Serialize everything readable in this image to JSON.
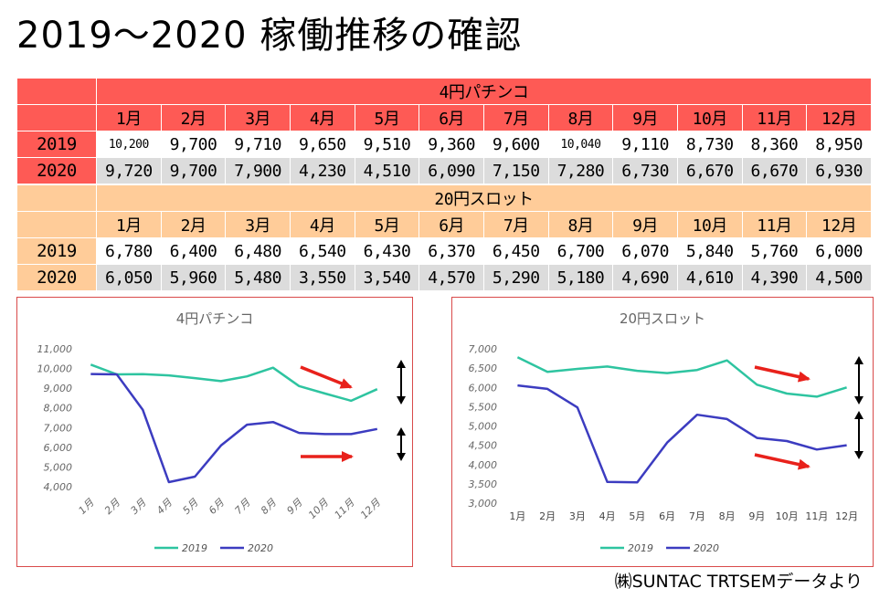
{
  "title": "2019～2020  稼働推移の確認",
  "footer": "㈱SUNTAC  TRTSEMデータより",
  "months": [
    "1月",
    "2月",
    "3月",
    "4月",
    "5月",
    "6月",
    "7月",
    "8月",
    "9月",
    "10月",
    "11月",
    "12月"
  ],
  "pachinko_table": {
    "header": "4円パチンコ",
    "rows": [
      {
        "year": "2019",
        "values": [
          "10,200",
          "9,700",
          "9,710",
          "9,650",
          "9,510",
          "9,360",
          "9,600",
          "10,040",
          "9,110",
          "8,730",
          "8,360",
          "8,950"
        ]
      },
      {
        "year": "2020",
        "values": [
          "9,720",
          "9,700",
          "7,900",
          "4,230",
          "4,510",
          "6,090",
          "7,150",
          "7,280",
          "6,730",
          "6,670",
          "6,670",
          "6,930"
        ]
      }
    ]
  },
  "slot_table": {
    "header": "20円スロット",
    "rows": [
      {
        "year": "2019",
        "values": [
          "6,780",
          "6,400",
          "6,480",
          "6,540",
          "6,430",
          "6,370",
          "6,450",
          "6,700",
          "6,070",
          "5,840",
          "5,760",
          "6,000"
        ]
      },
      {
        "year": "2020",
        "values": [
          "6,050",
          "5,960",
          "5,480",
          "3,550",
          "3,540",
          "4,570",
          "5,290",
          "5,180",
          "4,690",
          "4,610",
          "4,390",
          "4,500"
        ]
      }
    ]
  },
  "colors": {
    "y2019": "#2ec4a0",
    "y2020": "#3c3cc0",
    "arrow_red": "#e8211b",
    "pachinko": "#fe5a55",
    "slot": "#ffcc99"
  },
  "chart_data": [
    {
      "type": "line",
      "title": "4円パチンコ",
      "categories": [
        "1月",
        "2月",
        "3月",
        "4月",
        "5月",
        "6月",
        "7月",
        "8月",
        "9月",
        "10月",
        "11月",
        "12月"
      ],
      "series": [
        {
          "name": "2019",
          "values": [
            10200,
            9700,
            9710,
            9650,
            9510,
            9360,
            9600,
            10040,
            9110,
            8730,
            8360,
            8950
          ]
        },
        {
          "name": "2020",
          "values": [
            9720,
            9700,
            7900,
            4230,
            4510,
            6090,
            7150,
            7280,
            6730,
            6670,
            6670,
            6930
          ]
        }
      ],
      "ylim": [
        4000,
        11000
      ],
      "yticks": [
        "11,000",
        "10,000",
        "9,000",
        "8,000",
        "7,000",
        "6,000",
        "5,000",
        "4,000"
      ],
      "legend": "bottom",
      "xlabel": "",
      "ylabel": ""
    },
    {
      "type": "line",
      "title": "20円スロット",
      "categories": [
        "1月",
        "2月",
        "3月",
        "4月",
        "5月",
        "6月",
        "7月",
        "8月",
        "9月",
        "10月",
        "11月",
        "12月"
      ],
      "series": [
        {
          "name": "2019",
          "values": [
            6780,
            6400,
            6480,
            6540,
            6430,
            6370,
            6450,
            6700,
            6070,
            5840,
            5760,
            6000
          ]
        },
        {
          "name": "2020",
          "values": [
            6050,
            5960,
            5480,
            3550,
            3540,
            4570,
            5290,
            5180,
            4690,
            4610,
            4390,
            4500
          ]
        }
      ],
      "ylim": [
        3000,
        7000
      ],
      "yticks": [
        "7,000",
        "6,500",
        "6,000",
        "5,500",
        "5,000",
        "4,500",
        "4,000",
        "3,500",
        "3,000"
      ],
      "legend": "bottom",
      "xlabel": "",
      "ylabel": ""
    }
  ]
}
